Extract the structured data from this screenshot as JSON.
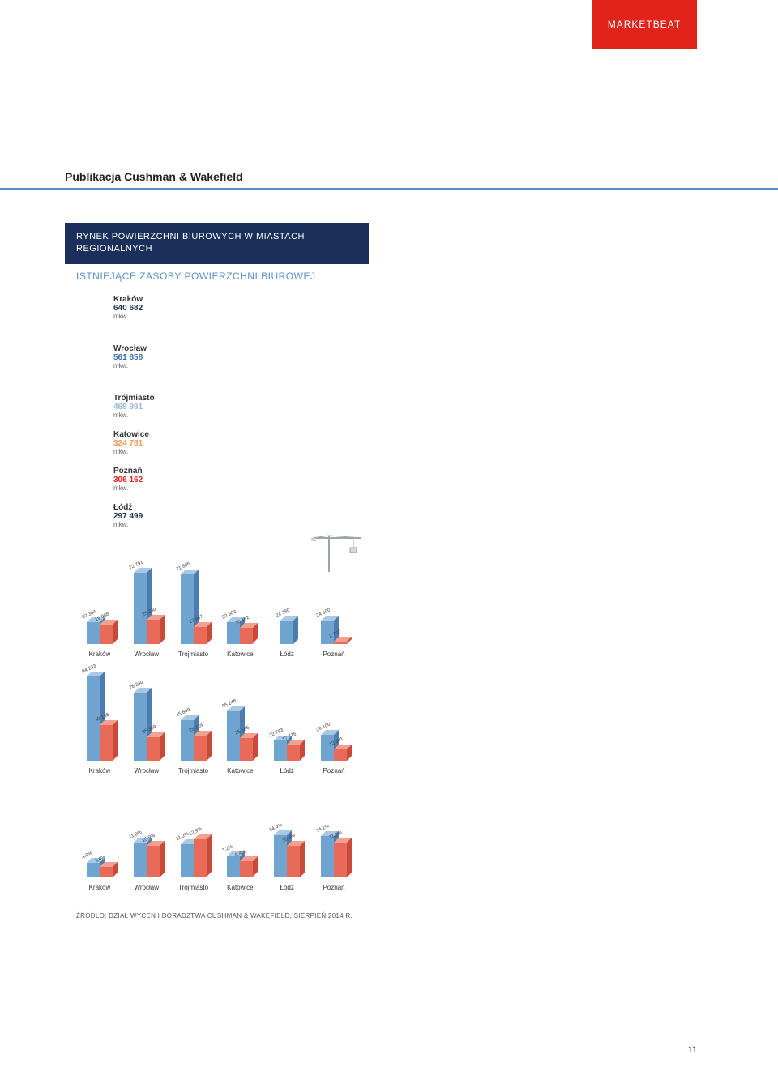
{
  "badge": "MARKETBEAT",
  "publication_title": "Publikacja Cushman & Wakefield",
  "panel": {
    "header_line1": "RYNEK POWIERZCHNI BIUROWYCH W MIASTACH",
    "header_line2": "REGIONALNYCH",
    "subheader": "ISTNIEJĄCE ZASOBY POWIERZCHNI BIUROWEJ"
  },
  "stock": [
    {
      "name": "Kraków",
      "value": "640 682",
      "unit": "mkw.",
      "color": "#1a2f5a",
      "big": true
    },
    {
      "name": "Wrocław",
      "value": "561 858",
      "unit": "mkw.",
      "color": "#3f6fb0",
      "big": true
    },
    {
      "name": "Trójmiasto",
      "value": "469 991",
      "unit": "mkw.",
      "color": "#9bb8d8",
      "big": false
    },
    {
      "name": "Katowice",
      "value": "324 781",
      "unit": "mkw.",
      "color": "#ec9a5a",
      "big": false
    },
    {
      "name": "Poznań",
      "value": "306 162",
      "unit": "mkw.",
      "color": "#e2231a",
      "big": false
    },
    {
      "name": "Łódź",
      "value": "297 499",
      "unit": "mkw.",
      "color": "#1a2f5a",
      "big": false
    }
  ],
  "chart_colors": {
    "blue_front": "#6fa3d0",
    "blue_side": "#4d7db0",
    "blue_top": "#a8c8e4",
    "red_front": "#e86b5a",
    "red_side": "#c84a3a",
    "red_top": "#f2a090",
    "grey_front": "#cfd6dd",
    "grey_side": "#aeb8c2",
    "grey_top": "#e4e9ef"
  },
  "cities": [
    "Kraków",
    "Wrocław",
    "Trójmiasto",
    "Katowice",
    "Łódź",
    "Poznań"
  ],
  "chart1": {
    "scale": 0.0012,
    "bars": [
      {
        "blue": 22344,
        "red": 19988,
        "blue_label": "22 344",
        "red_label": "19 988"
      },
      {
        "blue": 72791,
        "red": 25230,
        "blue_label": "72 791",
        "red_label": "25 230"
      },
      {
        "blue": 71805,
        "red": 17507,
        "blue_label": "71 805",
        "red_label": "17 507"
      },
      {
        "blue": 22502,
        "red": 16182,
        "blue_label": "22 502",
        "red_label": "16 182"
      },
      {
        "blue": 24380,
        "red": 0,
        "blue_label": "24 380",
        "red_label": ""
      },
      {
        "blue": 24100,
        "red": 2700,
        "blue_label": "24 100",
        "red_label": "2 700"
      }
    ],
    "has_crane": true
  },
  "chart2": {
    "scale": 0.0011,
    "bars": [
      {
        "blue": 94233,
        "red": 40136,
        "blue_label": "94 233",
        "red_label": "40 136"
      },
      {
        "blue": 76240,
        "red": 26369,
        "blue_label": "76 240",
        "red_label": "26 369"
      },
      {
        "blue": 45649,
        "red": 28124,
        "blue_label": "45 649",
        "red_label": "28 124"
      },
      {
        "blue": 55246,
        "red": 25585,
        "blue_label": "55 246",
        "red_label": "25 585"
      },
      {
        "blue": 22783,
        "red": 17775,
        "blue_label": "22 783",
        "red_label": "17 775"
      },
      {
        "blue": 29100,
        "red": 12341,
        "blue_label": "29 100",
        "red_label": "12 341"
      }
    ]
  },
  "chart3": {
    "scale": 3.6,
    "bars": [
      {
        "blue": 4.9,
        "red": 3.6,
        "blue_label": "4,9%",
        "red_label": "3,6%"
      },
      {
        "blue": 11.8,
        "red": 10.9,
        "blue_label": "11,8%",
        "red_label": "10,9%"
      },
      {
        "blue": 11.2,
        "red": 12.9,
        "blue_label": "11,2%",
        "red_label": "12,9%"
      },
      {
        "blue": 7.2,
        "red": 5.4,
        "blue_label": "7,2%",
        "red_label": "5,4%"
      },
      {
        "blue": 14.4,
        "red": 10.8,
        "blue_label": "14,4%",
        "red_label": "10,8%"
      },
      {
        "blue": 14.2,
        "red": 11.9,
        "blue_label": "14,2%",
        "red_label": "11,9%"
      }
    ]
  },
  "source": "ŹRÓDŁO: DZIAŁ WYCEN I DORADZTWA CUSHMAN & WAKEFIELD, SIERPIEŃ 2014 R.",
  "page_number": "11"
}
